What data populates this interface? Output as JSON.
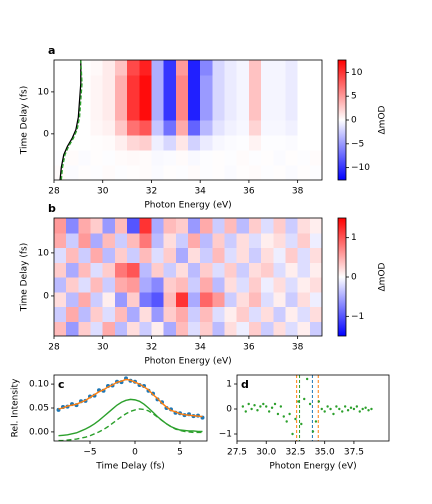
{
  "chart_data": [
    {
      "type": "heatmap",
      "panel_label": "a",
      "xlabel": "Photon Energy (eV)",
      "ylabel": "Time Delay (fs)",
      "xlim": [
        28,
        39
      ],
      "ylim": [
        -11,
        17.6
      ],
      "xticks": [
        28,
        30,
        32,
        34,
        36,
        38
      ],
      "yticks": [
        0,
        10
      ],
      "colormap": "bwr",
      "clim": [
        -12.6,
        12.6
      ],
      "clabel": "ΔmOD",
      "cticks": [
        {
          "value": -10,
          "label": "−10"
        },
        {
          "value": -5,
          "label": "−5"
        },
        0,
        5,
        10
      ],
      "z": [
        [
          0.2,
          -0.2,
          0.1,
          -0.1,
          0.2,
          -0.1,
          0.1,
          0.2,
          -0.2,
          0.1,
          -0.1,
          0.2,
          -0.1,
          0.1,
          -0.2,
          0.1,
          0.2,
          -0.1,
          0.1,
          -0.2,
          0.1,
          -0.1
        ],
        [
          -0.1,
          0.2,
          -0.2,
          0.1,
          -0.1,
          0.2,
          0.3,
          0.2,
          -0.3,
          -0.2,
          0.2,
          -0.3,
          -0.1,
          0.1,
          -0.1,
          0.2,
          -0.1,
          0.1,
          -0.2,
          0.1,
          -0.1,
          0.2
        ],
        [
          0,
          0,
          0,
          0.1,
          0.2,
          0.8,
          2,
          2.4,
          -0.8,
          -2,
          1.2,
          -2.2,
          -1,
          -0.4,
          -0.2,
          -0.1,
          0.6,
          -0.1,
          -0.1,
          -0.2,
          0,
          0
        ],
        [
          0,
          0,
          0,
          0.4,
          0.7,
          2.8,
          7,
          8.4,
          -2.8,
          -7,
          4.2,
          -7.7,
          -3.5,
          -1.4,
          -0.7,
          -0.4,
          2.1,
          -0.4,
          -0.4,
          -0.7,
          0,
          0
        ],
        [
          0,
          0,
          0,
          0.5,
          1,
          4,
          10,
          12,
          -4,
          -10,
          6,
          -11,
          -5,
          -2,
          -1,
          -0.5,
          3,
          -0.5,
          -0.5,
          -1,
          0,
          0
        ],
        [
          0,
          0,
          0,
          0.5,
          1,
          4,
          10,
          12,
          -4,
          -10,
          6,
          -11,
          -5,
          -2,
          -1,
          -0.5,
          3,
          -0.5,
          -0.5,
          -1,
          0,
          0
        ],
        [
          0,
          0,
          0,
          0.5,
          1,
          4,
          10,
          12,
          -4,
          -10,
          6,
          -11,
          -5,
          -2,
          -1,
          -0.5,
          3,
          -0.5,
          -0.5,
          -1,
          0,
          0
        ],
        [
          0,
          0,
          0,
          0.3,
          1,
          3,
          9,
          11,
          -4,
          -10,
          5,
          -11,
          -6,
          -2,
          -1,
          -0.5,
          3,
          -0.5,
          -0.5,
          -1,
          0,
          0
        ]
      ],
      "lines": [
        {
          "color": "#000000",
          "dashed": false,
          "x": [
            28.25,
            28.3,
            28.4,
            28.55,
            28.75,
            28.9,
            29.0,
            29.05,
            29.1,
            29.1
          ],
          "y": [
            -11,
            -8,
            -5,
            -3,
            -1,
            1,
            4,
            8,
            12,
            17.6
          ]
        },
        {
          "color": "#2ca02c",
          "dashed": true,
          "x": [
            28.3,
            28.35,
            28.45,
            28.6,
            28.8,
            28.95,
            29.05,
            29.1,
            29.15,
            29.1
          ],
          "y": [
            -11,
            -8,
            -5,
            -3,
            -1,
            1,
            4,
            8,
            12,
            17.6
          ]
        }
      ]
    },
    {
      "type": "heatmap",
      "panel_label": "b",
      "xlabel": "Photon Energy (eV)",
      "ylabel": "Time Delay (fs)",
      "xlim": [
        28,
        39
      ],
      "ylim": [
        -9.3,
        18.1
      ],
      "xticks": [
        28,
        30,
        32,
        34,
        36,
        38
      ],
      "yticks": [
        0,
        10
      ],
      "colormap": "bwr",
      "clim": [
        -1.5,
        1.5
      ],
      "clabel": "ΔmOD",
      "cticks": [
        {
          "value": -1,
          "label": "−1"
        },
        0,
        1
      ],
      "z": [
        [
          0.4,
          -0.6,
          0.3,
          -0.2,
          0.5,
          -0.4,
          0.2,
          -0.3,
          0.1,
          -0.5,
          0.4,
          -0.2,
          0.3,
          -0.4,
          0.2,
          -0.1,
          0.3,
          -0.3,
          0.2,
          -0.2,
          0.1,
          -0.3
        ],
        [
          -0.3,
          0.5,
          -0.4,
          0.3,
          -0.2,
          0.4,
          -0.5,
          0.2,
          -0.6,
          0.3,
          0.5,
          -0.3,
          0.4,
          -0.2,
          0.1,
          0.3,
          -0.2,
          0.2,
          -0.3,
          0.1,
          -0.2,
          0.2
        ],
        [
          0.2,
          -0.4,
          0.5,
          -0.3,
          0.1,
          -0.6,
          0.3,
          -0.8,
          -1.0,
          0.4,
          1.2,
          -0.5,
          0.9,
          0.6,
          -0.3,
          0.2,
          0.4,
          -0.2,
          0.1,
          -0.3,
          0.2,
          -0.1
        ],
        [
          -0.4,
          0.3,
          -0.2,
          0.4,
          -0.3,
          0.5,
          0.6,
          -0.5,
          -0.7,
          0.3,
          0.4,
          -0.3,
          0.5,
          -0.4,
          0.2,
          -0.2,
          0.3,
          -0.1,
          0.2,
          -0.2,
          0.1,
          0.2
        ],
        [
          0.3,
          -0.5,
          0.4,
          -0.2,
          0.3,
          0.8,
          1.0,
          -0.4,
          0.3,
          -0.3,
          0.2,
          -0.4,
          0.3,
          -0.2,
          0.3,
          -0.3,
          0.2,
          0.3,
          -0.2,
          0.1,
          -0.2,
          0.1
        ],
        [
          -0.2,
          0.4,
          -0.3,
          0.5,
          -0.4,
          0.3,
          -0.3,
          0.4,
          -0.2,
          0.3,
          -0.5,
          0.2,
          -0.3,
          0.4,
          -0.2,
          0.2,
          -0.3,
          0.2,
          -0.1,
          0.3,
          -0.2,
          0.2
        ],
        [
          0.5,
          -0.3,
          0.6,
          -0.5,
          0.4,
          -0.3,
          0.4,
          0.8,
          -0.4,
          0.2,
          -0.3,
          0.5,
          -0.4,
          0.3,
          -0.3,
          0.2,
          -0.2,
          0.1,
          0.2,
          -0.2,
          0.3,
          -0.1
        ],
        [
          0.6,
          -0.7,
          0.5,
          0.3,
          -0.6,
          0.4,
          -1.0,
          1.2,
          -0.5,
          0.4,
          0.3,
          -0.6,
          0.5,
          -0.3,
          0.4,
          -0.4,
          0.3,
          -0.2,
          0.3,
          -0.3,
          0.2,
          0.1
        ]
      ]
    },
    {
      "type": "line",
      "panel_label": "c",
      "xlabel": "Time Delay (fs)",
      "ylabel": "Rel. Intensity",
      "xlim": [
        -9,
        8
      ],
      "ylim": [
        -0.019,
        0.119
      ],
      "xticks": [
        {
          "value": -5,
          "label": "−5"
        },
        0,
        5
      ],
      "yticks": [
        {
          "value": 0,
          "label": "0.00"
        },
        {
          "value": 0.05,
          "label": "0.05"
        },
        {
          "value": 0.1,
          "label": "0.10"
        }
      ],
      "x": [
        -8.5,
        -8,
        -7.5,
        -7,
        -6.5,
        -6,
        -5.5,
        -5,
        -4.5,
        -4,
        -3.5,
        -3,
        -2.5,
        -2,
        -1.5,
        -1,
        -0.5,
        0,
        0.5,
        1,
        1.5,
        2,
        2.5,
        3,
        3.5,
        4,
        4.5,
        5,
        5.5,
        6,
        6.5,
        7,
        7.5
      ],
      "series": [
        {
          "style": "markers",
          "color": "#1f77b4",
          "values": [
            0.046,
            0.052,
            0.053,
            0.058,
            0.056,
            0.064,
            0.065,
            0.074,
            0.076,
            0.087,
            0.086,
            0.096,
            0.097,
            0.105,
            0.104,
            0.112,
            0.107,
            0.105,
            0.098,
            0.096,
            0.086,
            0.08,
            0.068,
            0.062,
            0.05,
            0.047,
            0.04,
            0.039,
            0.035,
            0.037,
            0.033,
            0.034,
            0.03
          ]
        },
        {
          "style": "line",
          "color": "#ff7f0e",
          "values": [
            0.048,
            0.05,
            0.054,
            0.056,
            0.058,
            0.062,
            0.066,
            0.072,
            0.078,
            0.084,
            0.088,
            0.094,
            0.098,
            0.104,
            0.106,
            0.11,
            0.108,
            0.104,
            0.1,
            0.094,
            0.088,
            0.078,
            0.07,
            0.06,
            0.052,
            0.045,
            0.042,
            0.038,
            0.036,
            0.035,
            0.034,
            0.033,
            0.032
          ]
        },
        {
          "style": "line",
          "color": "#2ca02c",
          "values": [
            -0.008,
            -0.007,
            -0.006,
            -0.004,
            -0.002,
            0.002,
            0.006,
            0.011,
            0.017,
            0.024,
            0.032,
            0.04,
            0.048,
            0.056,
            0.062,
            0.066,
            0.068,
            0.067,
            0.064,
            0.058,
            0.05,
            0.041,
            0.032,
            0.024,
            0.017,
            0.011,
            0.007,
            0.004,
            0.003,
            0.002,
            0.002,
            0.001,
            0.001
          ]
        },
        {
          "style": "dashed",
          "color": "#2ca02c",
          "values": [
            -0.018,
            -0.018,
            -0.017,
            -0.016,
            -0.015,
            -0.013,
            -0.011,
            -0.008,
            -0.004,
            0.0,
            0.005,
            0.011,
            0.018,
            0.025,
            0.032,
            0.038,
            0.043,
            0.046,
            0.048,
            0.047,
            0.044,
            0.038,
            0.031,
            0.024,
            0.017,
            0.011,
            0.006,
            0.003,
            0.001,
            0.0,
            -0.001,
            -0.001,
            -0.001
          ]
        }
      ]
    },
    {
      "type": "scatter",
      "panel_label": "d",
      "xlabel": "Photon Energy (eV)",
      "xlim": [
        27.5,
        40.5
      ],
      "ylim": [
        -1.28,
        1.36
      ],
      "xticks": [
        27.5,
        {
          "value": 30,
          "label": "30.0"
        },
        32.5,
        {
          "value": 35,
          "label": "35.0"
        },
        37.5
      ],
      "yticks": [
        {
          "value": -1,
          "label": "−1"
        },
        0,
        1
      ],
      "color": "#2ca02c",
      "x": [
        28,
        28.25,
        28.5,
        28.75,
        29,
        29.25,
        29.5,
        29.75,
        30,
        30.25,
        30.5,
        30.75,
        31,
        31.25,
        31.5,
        31.75,
        32,
        32.25,
        32.5,
        32.75,
        33,
        33.25,
        33.5,
        33.75,
        34,
        34.25,
        34.5,
        34.75,
        35,
        35.25,
        35.5,
        35.75,
        36,
        36.25,
        36.5,
        36.75,
        37,
        37.25,
        37.5,
        37.75,
        38,
        38.25,
        38.5,
        38.75,
        39
      ],
      "values": [
        0.1,
        -0.1,
        0.2,
        0.0,
        0.15,
        -0.05,
        0.1,
        0.2,
        0.1,
        -0.1,
        0.05,
        0.2,
        -0.2,
        0.1,
        -0.3,
        -0.5,
        -0.2,
        -1.0,
        -0.4,
        0.3,
        -0.6,
        0.4,
        1.2,
        0.2,
        -0.9,
        -0.5,
        0.3,
        0.0,
        -0.1,
        0.1,
        0.0,
        -0.2,
        0.1,
        0.0,
        -0.1,
        0.1,
        -0.05,
        0.05,
        0.0,
        0.1,
        -0.1,
        0.0,
        0.05,
        -0.05,
        0.0
      ],
      "vlines": [
        {
          "x": 32.6,
          "color": "#ff7f0e"
        },
        {
          "x": 32.85,
          "color": "#2ca02c"
        },
        {
          "x": 33.95,
          "color": "#1f77b4"
        },
        {
          "x": 34.45,
          "color": "#ff7f0e"
        }
      ]
    }
  ]
}
